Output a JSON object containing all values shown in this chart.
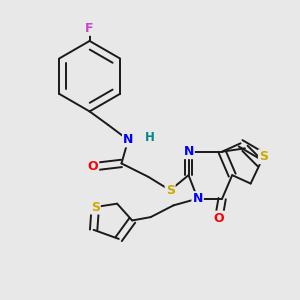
{
  "background_color": "#e8e8e8",
  "bond_color": "#1a1a1a",
  "atom_colors": {
    "F": "#cc44cc",
    "N": "#0000ff",
    "O": "#ff0000",
    "S": "#ccaa00",
    "H": "#008888",
    "C": "#1a1a1a"
  },
  "bond_lw": 1.4,
  "dbo": 0.022,
  "figsize": [
    3.0,
    3.0
  ],
  "dpi": 100
}
